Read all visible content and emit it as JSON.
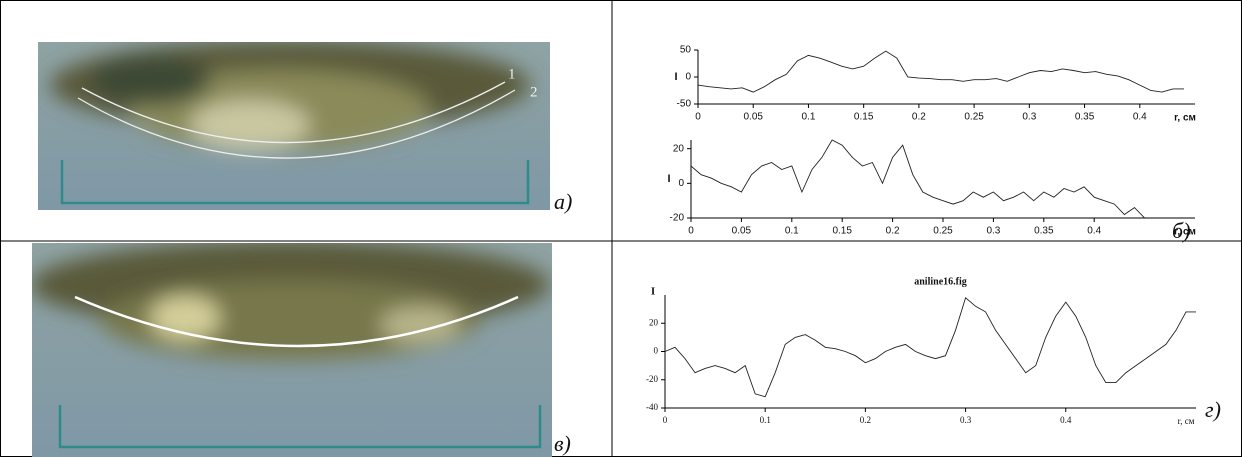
{
  "panels": {
    "a": {
      "curve_labels": [
        "1",
        "2"
      ],
      "label": "а)"
    },
    "b": {
      "label": "б)"
    },
    "c": {
      "label": "в)"
    },
    "d": {
      "label": "г)"
    }
  },
  "chart_data": [
    {
      "type": "line",
      "y_label": "I",
      "x_label": "r, см",
      "xlim": [
        0,
        0.45
      ],
      "ylim": [
        -50,
        50
      ],
      "xticks": [
        0,
        0.05,
        0.1,
        0.15,
        0.2,
        0.25,
        0.3,
        0.35,
        0.4
      ],
      "yticks": [
        50,
        0,
        -50
      ],
      "color": "#222222",
      "x": [
        0,
        0.01,
        0.02,
        0.03,
        0.04,
        0.05,
        0.06,
        0.07,
        0.08,
        0.09,
        0.1,
        0.11,
        0.12,
        0.13,
        0.14,
        0.15,
        0.16,
        0.17,
        0.18,
        0.19,
        0.2,
        0.21,
        0.22,
        0.23,
        0.24,
        0.25,
        0.26,
        0.27,
        0.28,
        0.29,
        0.3,
        0.31,
        0.32,
        0.33,
        0.34,
        0.35,
        0.36,
        0.37,
        0.38,
        0.39,
        0.4,
        0.41,
        0.42,
        0.43,
        0.44
      ],
      "values": [
        -15,
        -18,
        -20,
        -22,
        -20,
        -28,
        -18,
        -5,
        5,
        30,
        40,
        35,
        28,
        20,
        15,
        20,
        35,
        48,
        35,
        0,
        -2,
        -3,
        -5,
        -5,
        -8,
        -5,
        -5,
        -3,
        -8,
        0,
        8,
        12,
        10,
        15,
        12,
        8,
        10,
        5,
        2,
        -5,
        -15,
        -25,
        -28,
        -22,
        -22
      ]
    },
    {
      "type": "line",
      "y_label": "I",
      "x_label": "r, см",
      "xlim": [
        0,
        0.5
      ],
      "ylim": [
        -20,
        25
      ],
      "xticks": [
        0,
        0.05,
        0.1,
        0.15,
        0.2,
        0.25,
        0.3,
        0.35,
        0.4
      ],
      "yticks": [
        20,
        0,
        -20
      ],
      "color": "#222222",
      "x": [
        0,
        0.01,
        0.02,
        0.03,
        0.04,
        0.05,
        0.06,
        0.07,
        0.08,
        0.09,
        0.1,
        0.11,
        0.12,
        0.13,
        0.14,
        0.15,
        0.16,
        0.17,
        0.18,
        0.19,
        0.2,
        0.21,
        0.22,
        0.23,
        0.24,
        0.25,
        0.26,
        0.27,
        0.28,
        0.29,
        0.3,
        0.31,
        0.32,
        0.33,
        0.34,
        0.35,
        0.36,
        0.37,
        0.38,
        0.39,
        0.4,
        0.41,
        0.42,
        0.43,
        0.44,
        0.45
      ],
      "values": [
        10,
        5,
        3,
        0,
        -2,
        -5,
        5,
        10,
        12,
        8,
        10,
        -5,
        8,
        15,
        25,
        22,
        15,
        10,
        12,
        0,
        15,
        22,
        5,
        -5,
        -8,
        -10,
        -12,
        -10,
        -5,
        -8,
        -5,
        -10,
        -8,
        -5,
        -10,
        -5,
        -8,
        -3,
        -5,
        -2,
        -8,
        -10,
        -12,
        -18,
        -14,
        -20
      ]
    },
    {
      "type": "line",
      "title": "aniline16.fig",
      "y_label": "I",
      "x_label": "r, см",
      "xlim": [
        0,
        0.53
      ],
      "ylim": [
        -40,
        40
      ],
      "xticks": [
        0,
        0.1,
        0.2,
        0.3,
        0.4
      ],
      "yticks": [
        20,
        0,
        -20,
        -40
      ],
      "color": "#222222",
      "x": [
        0,
        0.01,
        0.02,
        0.03,
        0.04,
        0.05,
        0.06,
        0.07,
        0.08,
        0.09,
        0.1,
        0.11,
        0.12,
        0.13,
        0.14,
        0.15,
        0.16,
        0.17,
        0.18,
        0.19,
        0.2,
        0.21,
        0.22,
        0.23,
        0.24,
        0.25,
        0.26,
        0.27,
        0.28,
        0.29,
        0.3,
        0.31,
        0.32,
        0.33,
        0.34,
        0.35,
        0.36,
        0.37,
        0.38,
        0.39,
        0.4,
        0.41,
        0.42,
        0.43,
        0.44,
        0.45,
        0.46,
        0.47,
        0.48,
        0.49,
        0.5,
        0.51,
        0.52,
        0.53
      ],
      "values": [
        0,
        3,
        -5,
        -15,
        -12,
        -10,
        -12,
        -15,
        -10,
        -30,
        -32,
        -15,
        5,
        10,
        12,
        8,
        3,
        2,
        0,
        -3,
        -8,
        -5,
        0,
        3,
        5,
        0,
        -3,
        -5,
        -3,
        15,
        38,
        32,
        28,
        15,
        5,
        -5,
        -15,
        -10,
        10,
        25,
        35,
        25,
        10,
        -10,
        -22,
        -22,
        -15,
        -10,
        -5,
        0,
        5,
        15,
        28,
        28
      ]
    }
  ]
}
